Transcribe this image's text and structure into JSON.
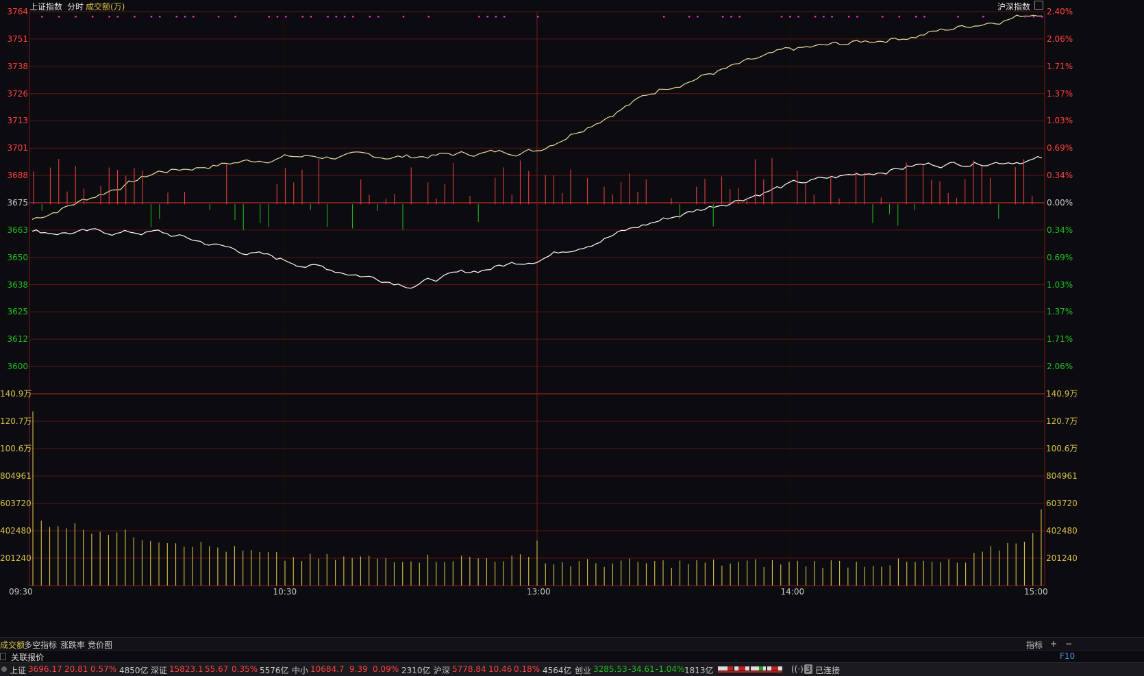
{
  "header": {
    "index_name": "上证指数",
    "mode": "分时",
    "indicator": "成交额(万)",
    "right_title": "沪深指数"
  },
  "price_axis": {
    "left_labels": [
      "3764",
      "3751",
      "3738",
      "3726",
      "3713",
      "3701",
      "3688",
      "3675",
      "3663",
      "3650",
      "3638",
      "3625",
      "3612",
      "3600"
    ],
    "right_labels": [
      "2.40%",
      "2.06%",
      "1.71%",
      "1.37%",
      "1.03%",
      "0.69%",
      "0.34%",
      "0.00%",
      "0.34%",
      "0.69%",
      "1.03%",
      "1.37%",
      "1.71%",
      "2.06%"
    ],
    "colors": {
      "up": "#ff4040",
      "base": "#c8c8c8",
      "down": "#20c020"
    }
  },
  "volume_axis": {
    "labels": [
      "140.9万",
      "120.7万",
      "100.6万",
      "804961",
      "603720",
      "402480",
      "201240"
    ],
    "color": "#d8c048"
  },
  "time_axis": [
    "09:30",
    "10:30",
    "13:00",
    "14:00",
    "15:00"
  ],
  "chart_data": {
    "type": "line",
    "title": "",
    "xlabel": "",
    "ylabel": "",
    "ylim": [
      3600,
      3764
    ],
    "base_price": 3675,
    "x": [
      "09:30",
      "10:00",
      "10:30",
      "11:00",
      "11:30/13:00",
      "13:30",
      "14:00",
      "14:30",
      "15:00"
    ],
    "series": [
      {
        "name": "",
        "color": "#e8e0a0",
        "values": [
          3668,
          3690,
          3697,
          3697,
          3700,
          3729,
          3746,
          3753,
          3764
        ]
      },
      {
        "name": "",
        "color": "#ffffff",
        "values": [
          3662,
          3662,
          3649,
          3638,
          3650,
          3668,
          3684,
          3693,
          3696
        ]
      }
    ],
    "volume_ylim": [
      0,
      1409000
    ],
    "volume_color": "#d8c048",
    "volume_peak_open": 1280000,
    "volume_peak_close": 560000
  },
  "bottom_tabs": [
    "成交额",
    "多空指标",
    "涨跌率",
    "竞价图"
  ],
  "bottom_right": {
    "indicator_label": "指标",
    "plus": "+",
    "minus": "−"
  },
  "related": {
    "label": "关联报价",
    "key": "F10"
  },
  "status": {
    "sh": {
      "name": "上证",
      "price": "3696.17",
      "chg": "20.81",
      "pct": "0.57%",
      "amt": "4850亿"
    },
    "sz": {
      "name": "深证",
      "price": "15823.1",
      "chg": "55.67",
      "pct": "0.35%",
      "amt": "5576亿"
    },
    "zx": {
      "name": "中小",
      "price": "10684.7",
      "chg": "9.39",
      "pct": "0.09%",
      "amt": "2310亿"
    },
    "hs": {
      "name": "沪深",
      "price": "5778.84",
      "chg": "10.46",
      "pct": "0.18%",
      "amt": "4564亿"
    },
    "cy": {
      "name": "创业",
      "price": "3285.53",
      "chg": "-34.61",
      "pct": "-1.04%",
      "amt": "1813亿"
    },
    "conn_count": "3",
    "conn_text": "已连接"
  }
}
